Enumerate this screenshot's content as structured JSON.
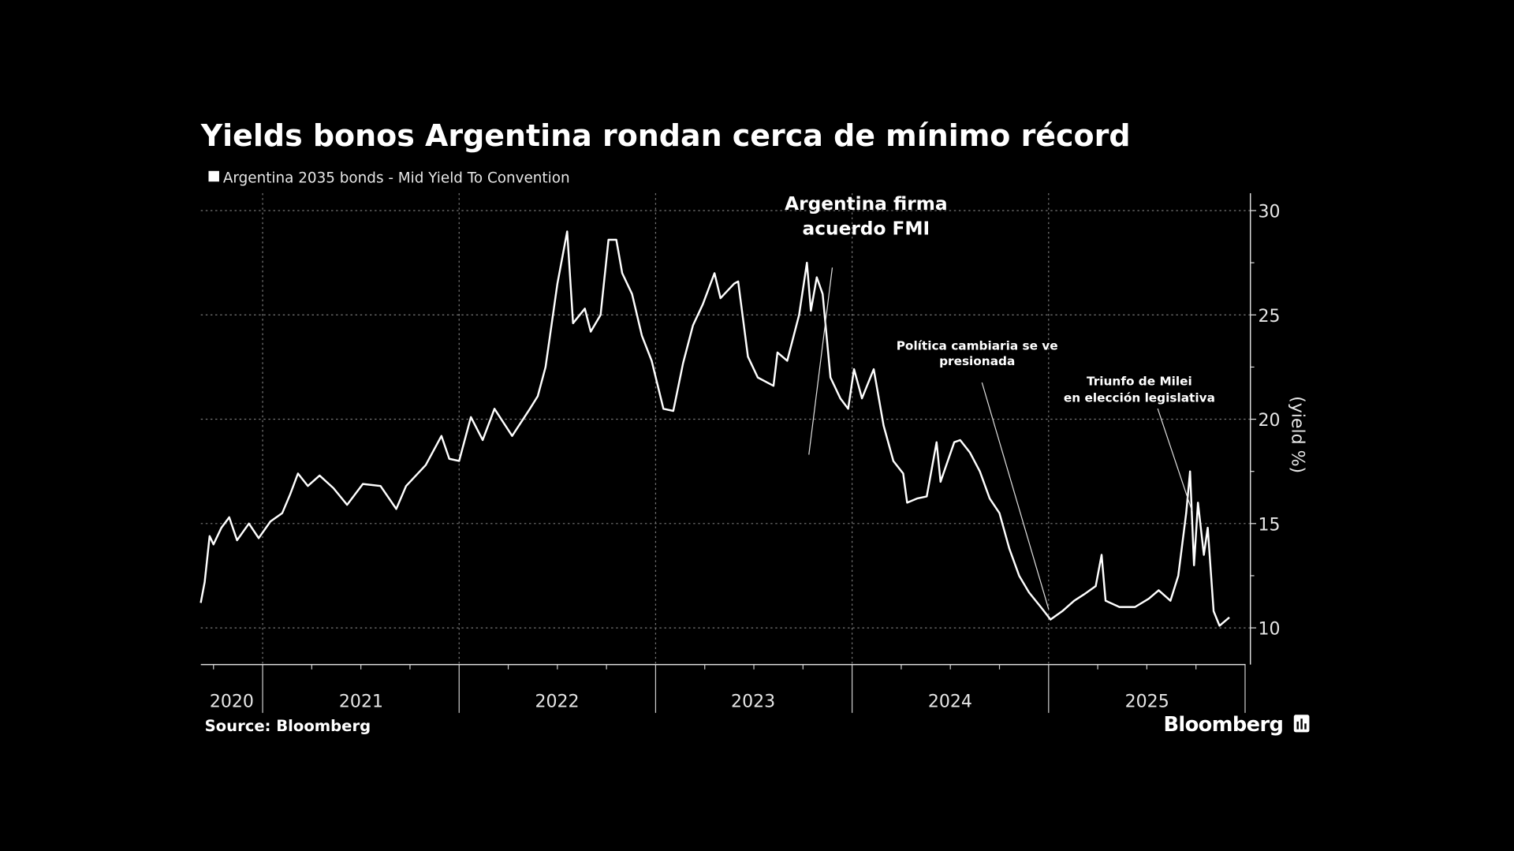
{
  "chart_data": {
    "type": "line",
    "title": "Yields bonos Argentina rondan cerca de mínimo récord",
    "legend": "Argentina 2035 bonds - Mid Yield To Convention",
    "ylabel": "(yield %)",
    "xlabel": "",
    "ylim": [
      8.2,
      30.8
    ],
    "xlim": [
      2020.685,
      2026.0
    ],
    "y_axis_side": "right",
    "yticks": [
      "30",
      "25",
      "20",
      "15",
      "10"
    ],
    "xtick_labels": [
      "2020",
      "2021",
      "2022",
      "2023",
      "2024",
      "2025"
    ],
    "grid": true,
    "legend_placement": "top-left",
    "line_color": "#ffffff",
    "background": "#000000",
    "series": [
      {
        "name": "Argentina 2035 bonds - Mid Yield To Convention",
        "x": [
          2020.685,
          2020.705,
          2020.73,
          2020.75,
          2020.79,
          2020.83,
          2020.87,
          2020.93,
          2020.98,
          2021.04,
          2021.1,
          2021.14,
          2021.18,
          2021.23,
          2021.29,
          2021.36,
          2021.43,
          2021.51,
          2021.6,
          2021.68,
          2021.73,
          2021.83,
          2021.91,
          2021.95,
          2022.0,
          2022.06,
          2022.12,
          2022.18,
          2022.27,
          2022.36,
          2022.4,
          2022.44,
          2022.5,
          2022.55,
          2022.58,
          2022.64,
          2022.67,
          2022.72,
          2022.76,
          2022.8,
          2022.83,
          2022.88,
          2022.93,
          2022.98,
          2023.04,
          2023.09,
          2023.14,
          2023.19,
          2023.24,
          2023.3,
          2023.33,
          2023.4,
          2023.42,
          2023.47,
          2023.52,
          2023.6,
          2023.62,
          2023.67,
          2023.73,
          2023.77,
          2023.79,
          2023.82,
          2023.85,
          2023.89,
          2023.94,
          2023.98,
          2024.01,
          2024.05,
          2024.11,
          2024.16,
          2024.21,
          2024.26,
          2024.28,
          2024.33,
          2024.38,
          2024.43,
          2024.45,
          2024.52,
          2024.55,
          2024.6,
          2024.65,
          2024.7,
          2024.75,
          2024.8,
          2024.85,
          2024.9,
          2024.96,
          2025.01,
          2025.07,
          2025.13,
          2025.18,
          2025.24,
          2025.27,
          2025.29,
          2025.36,
          2025.44,
          2025.51,
          2025.56,
          2025.62,
          2025.66,
          2025.7,
          2025.72,
          2025.74,
          2025.76,
          2025.79,
          2025.81,
          2025.84,
          2025.87,
          2025.92
        ],
        "y": [
          11.2,
          12.2,
          14.4,
          14.0,
          14.8,
          15.3,
          14.2,
          15.0,
          14.3,
          15.1,
          15.5,
          16.4,
          17.4,
          16.8,
          17.3,
          16.7,
          15.9,
          16.9,
          16.8,
          15.7,
          16.8,
          17.8,
          19.2,
          18.1,
          18.0,
          20.1,
          19.0,
          20.5,
          19.2,
          20.5,
          21.1,
          22.5,
          26.5,
          29.0,
          24.6,
          25.3,
          24.2,
          25.0,
          28.6,
          28.6,
          27.0,
          26.0,
          24.0,
          22.8,
          20.5,
          20.4,
          22.7,
          24.5,
          25.5,
          27.0,
          25.8,
          26.5,
          26.6,
          23.0,
          22.0,
          21.6,
          23.2,
          22.8,
          25.0,
          27.5,
          25.2,
          26.8,
          26.0,
          22.0,
          21.0,
          20.5,
          22.4,
          21.0,
          22.4,
          19.7,
          18.0,
          17.4,
          16.0,
          16.2,
          16.3,
          18.9,
          17.0,
          18.9,
          19.0,
          18.4,
          17.5,
          16.2,
          15.5,
          13.8,
          12.5,
          11.7,
          11.0,
          10.4,
          10.8,
          11.3,
          11.6,
          12.0,
          13.5,
          11.3,
          11.0,
          11.0,
          11.4,
          11.8,
          11.3,
          12.5,
          15.5,
          17.5,
          13.0,
          16.0,
          13.5,
          14.8,
          10.8,
          10.1,
          10.5
        ]
      }
    ],
    "annotations": [
      {
        "text_lines": [
          "Argentina firma",
          "acuerdo FMI"
        ],
        "x": 2023.78,
        "y": 18.3
      },
      {
        "text_lines": [
          "Política cambiaria se ve",
          "presionada"
        ],
        "x": 2025.0,
        "y": 10.9
      },
      {
        "text_lines": [
          "Triunfo de Milei",
          "en elección legislativa"
        ],
        "x": 2025.73,
        "y": 15.6
      }
    ],
    "source": "Source: Bloomberg",
    "brand": "Bloomberg"
  }
}
